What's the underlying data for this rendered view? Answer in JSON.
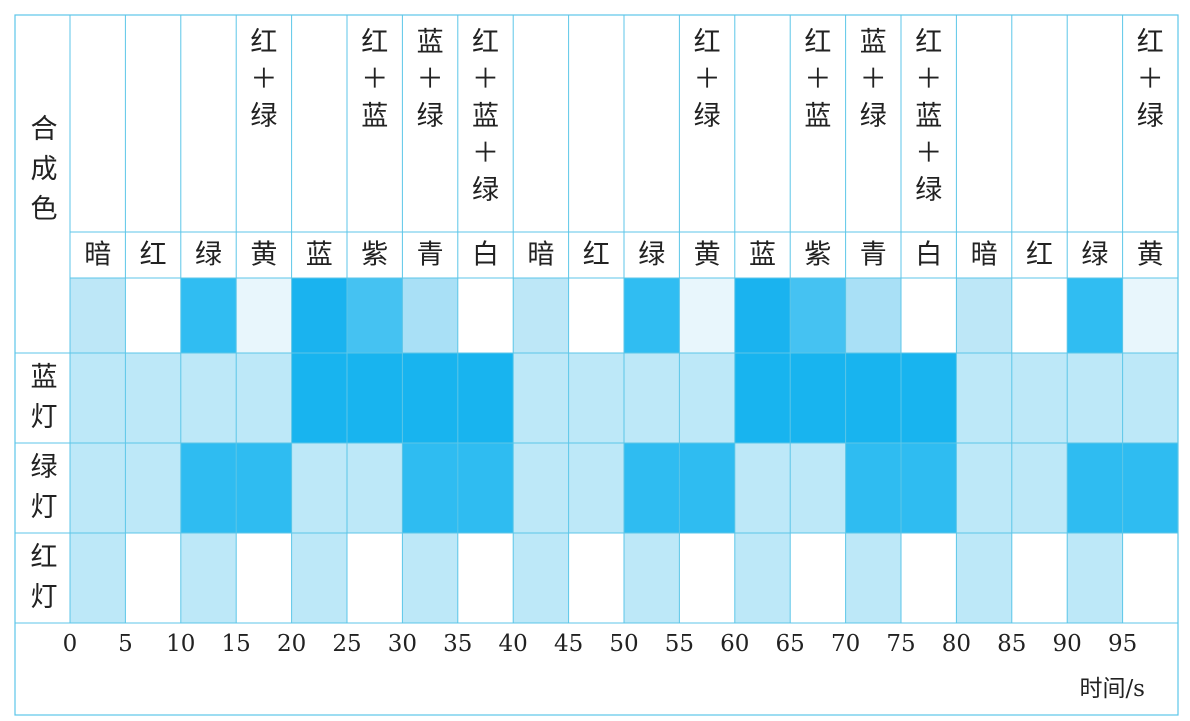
{
  "chart_data": {
    "type": "heatmap",
    "title": "",
    "xlabel": "时间/s",
    "x_ticks": [
      "0",
      "5",
      "10",
      "15",
      "20",
      "25",
      "30",
      "35",
      "40",
      "45",
      "50",
      "55",
      "60",
      "65",
      "70",
      "75",
      "80",
      "85",
      "90",
      "95"
    ],
    "row_labels": {
      "mix": "合成色",
      "blue": "蓝灯",
      "green": "绿灯",
      "red": "红灯"
    },
    "mix_formula": [
      "",
      "",
      "",
      "红+绿",
      "",
      "红+蓝",
      "蓝+绿",
      "红+蓝+绿",
      "",
      "",
      "",
      "红+绿",
      "",
      "红+蓝",
      "蓝+绿",
      "红+蓝+绿",
      "",
      "",
      "",
      "红+绿"
    ],
    "color_names": [
      "暗",
      "红",
      "绿",
      "黄",
      "蓝",
      "紫",
      "青",
      "白",
      "暗",
      "红",
      "绿",
      "黄",
      "蓝",
      "紫",
      "青",
      "白",
      "暗",
      "红",
      "绿",
      "黄"
    ],
    "swatch_colors": [
      "#bde7f7",
      "#ffffff",
      "#30bdf2",
      "#e8f6fc",
      "#1ab3ef",
      "#45c2f2",
      "#a9e0f6",
      "#ffffff",
      "#bde7f7",
      "#ffffff",
      "#30bdf2",
      "#e8f6fc",
      "#1ab3ef",
      "#45c2f2",
      "#a9e0f6",
      "#ffffff",
      "#bde7f7",
      "#ffffff",
      "#30bdf2",
      "#e8f6fc"
    ],
    "blue_on": [
      0,
      0,
      0,
      0,
      1,
      1,
      1,
      1,
      0,
      0,
      0,
      0,
      1,
      1,
      1,
      1,
      0,
      0,
      0,
      0
    ],
    "green_on": [
      0,
      0,
      1,
      1,
      0,
      0,
      1,
      1,
      0,
      0,
      1,
      1,
      0,
      0,
      1,
      1,
      0,
      0,
      1,
      1
    ],
    "red_on": [
      0,
      1,
      0,
      1,
      0,
      1,
      0,
      1,
      0,
      1,
      0,
      1,
      0,
      1,
      0,
      1,
      0,
      1,
      0,
      1
    ],
    "colors": {
      "blue_on": "#18b4ef",
      "green_on": "#2fbcf1",
      "idle": "#bde8f8",
      "red_lit": "#ffffff",
      "red_idle": "#bde8f8",
      "grid": "#5cc6e8"
    }
  }
}
